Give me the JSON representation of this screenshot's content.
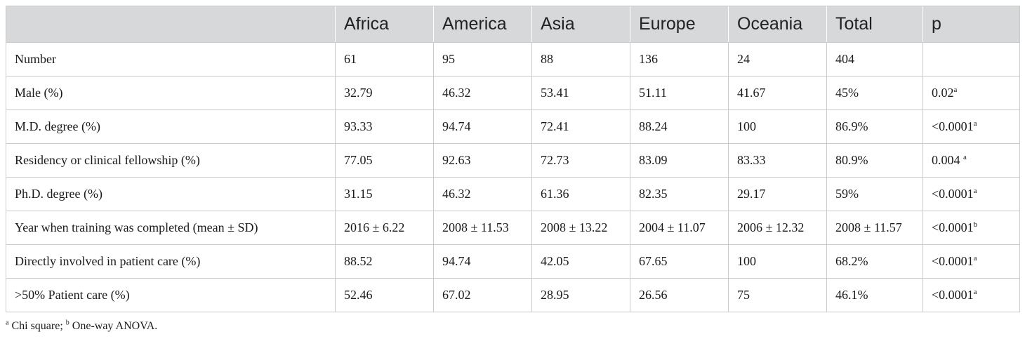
{
  "table": {
    "headers": [
      "",
      "Africa",
      "America",
      "Asia",
      "Europe",
      "Oceania",
      "Total",
      "p"
    ],
    "rows": [
      {
        "label": "Number",
        "values": [
          "61",
          "95",
          "88",
          "136",
          "24",
          "404"
        ],
        "p": "",
        "p_sup": ""
      },
      {
        "label": "Male (%)",
        "values": [
          "32.79",
          "46.32",
          "53.41",
          "51.11",
          "41.67",
          "45%"
        ],
        "p": "0.02",
        "p_sup": "a"
      },
      {
        "label": "M.D. degree (%)",
        "values": [
          "93.33",
          "94.74",
          "72.41",
          "88.24",
          "100",
          "86.9%"
        ],
        "p": "<0.0001",
        "p_sup": "a"
      },
      {
        "label": "Residency or clinical fellowship (%)",
        "values": [
          "77.05",
          "92.63",
          "72.73",
          "83.09",
          "83.33",
          "80.9%"
        ],
        "p": "0.004 ",
        "p_sup": "a"
      },
      {
        "label": "Ph.D. degree (%)",
        "values": [
          "31.15",
          "46.32",
          "61.36",
          "82.35",
          "29.17",
          "59%"
        ],
        "p": "<0.0001",
        "p_sup": "a"
      },
      {
        "label": "Year when training was completed (mean ± SD)",
        "values": [
          "2016 ± 6.22",
          "2008 ± 11.53",
          "2008 ± 13.22",
          "2004 ± 11.07",
          "2006 ± 12.32",
          "2008 ± 11.57"
        ],
        "p": "<0.0001",
        "p_sup": "b"
      },
      {
        "label": "Directly involved in patient care (%)",
        "values": [
          "88.52",
          "94.74",
          "42.05",
          "67.65",
          "100",
          "68.2%"
        ],
        "p": "<0.0001",
        "p_sup": "a"
      },
      {
        "label": ">50% Patient care (%)",
        "values": [
          "52.46",
          "67.02",
          "28.95",
          "26.56",
          "75",
          "46.1%"
        ],
        "p": "<0.0001",
        "p_sup": "a"
      }
    ]
  },
  "footnote": {
    "a_mark": "a",
    "a_text": " Chi square; ",
    "b_mark": "b",
    "b_text": " One-way ANOVA."
  }
}
